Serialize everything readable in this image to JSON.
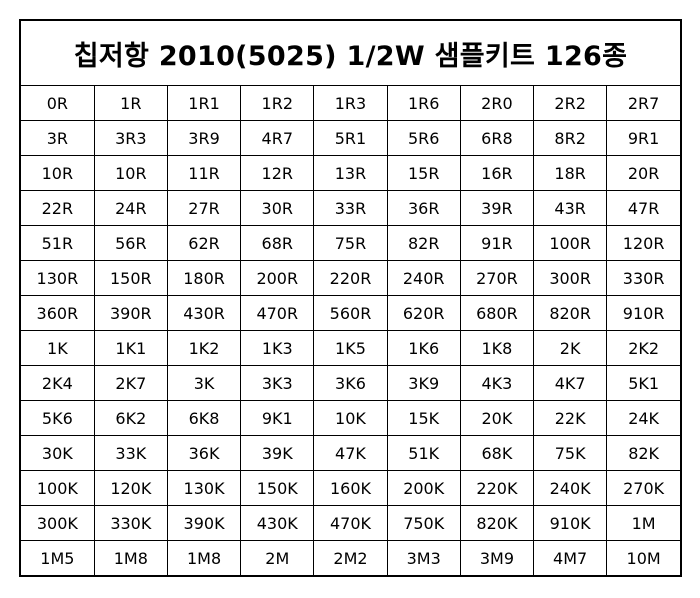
{
  "title": "칩저항 2010(5025) 1/2W 샘플키트 126종",
  "grid": [
    [
      "0R",
      "1R",
      "1R1",
      "1R2",
      "1R3",
      "1R6",
      "2R0",
      "2R2",
      "2R7"
    ],
    [
      "3R",
      "3R3",
      "3R9",
      "4R7",
      "5R1",
      "5R6",
      "6R8",
      "8R2",
      "9R1"
    ],
    [
      "10R",
      "10R",
      "11R",
      "12R",
      "13R",
      "15R",
      "16R",
      "18R",
      "20R"
    ],
    [
      "22R",
      "24R",
      "27R",
      "30R",
      "33R",
      "36R",
      "39R",
      "43R",
      "47R"
    ],
    [
      "51R",
      "56R",
      "62R",
      "68R",
      "75R",
      "82R",
      "91R",
      "100R",
      "120R"
    ],
    [
      "130R",
      "150R",
      "180R",
      "200R",
      "220R",
      "240R",
      "270R",
      "300R",
      "330R"
    ],
    [
      "360R",
      "390R",
      "430R",
      "470R",
      "560R",
      "620R",
      "680R",
      "820R",
      "910R"
    ],
    [
      "1K",
      "1K1",
      "1K2",
      "1K3",
      "1K5",
      "1K6",
      "1K8",
      "2K",
      "2K2"
    ],
    [
      "2K4",
      "2K7",
      "3K",
      "3K3",
      "3K6",
      "3K9",
      "4K3",
      "4K7",
      "5K1"
    ],
    [
      "5K6",
      "6K2",
      "6K8",
      "9K1",
      "10K",
      "15K",
      "20K",
      "22K",
      "24K"
    ],
    [
      "30K",
      "33K",
      "36K",
      "39K",
      "47K",
      "51K",
      "68K",
      "75K",
      "82K"
    ],
    [
      "100K",
      "120K",
      "130K",
      "150K",
      "160K",
      "200K",
      "220K",
      "240K",
      "270K"
    ],
    [
      "300K",
      "330K",
      "390K",
      "430K",
      "470K",
      "750K",
      "820K",
      "910K",
      "1M"
    ],
    [
      "1M5",
      "1M8",
      "1M8",
      "2M",
      "2M2",
      "3M3",
      "3M9",
      "4M7",
      "10M"
    ]
  ]
}
